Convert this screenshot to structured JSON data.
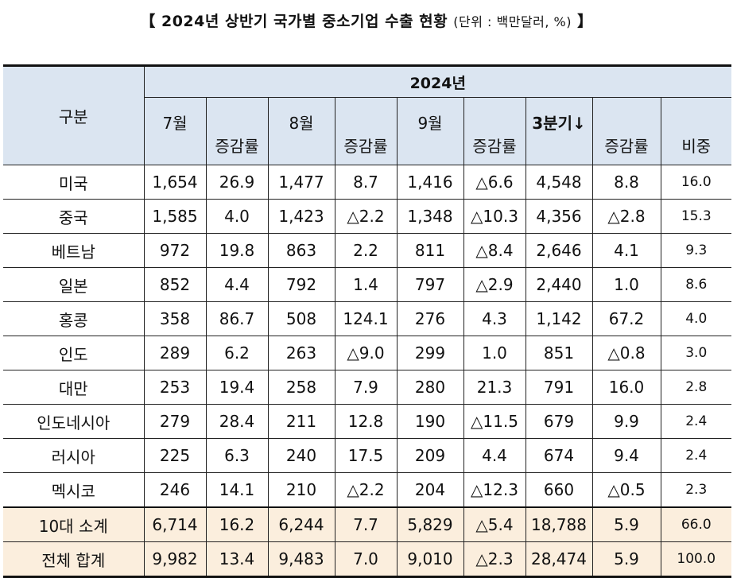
{
  "title": {
    "open": "【",
    "main": "2024년 상반기 국가별 중소기업 수출 현황",
    "unit": "(단위 : 백만달러, %)",
    "close": "】"
  },
  "header": {
    "category": "구분",
    "year": "2024년",
    "jul": "7월",
    "aug": "8월",
    "sep": "9월",
    "q3": "3분기↓",
    "change": "증감률",
    "share": "비중"
  },
  "rows": [
    [
      "미국",
      "1,654",
      "26.9",
      "1,477",
      "8.7",
      "1,416",
      "△6.6",
      "4,548",
      "8.8",
      "16.0"
    ],
    [
      "중국",
      "1,585",
      "4.0",
      "1,423",
      "△2.2",
      "1,348",
      "△10.3",
      "4,356",
      "△2.8",
      "15.3"
    ],
    [
      "베트남",
      "972",
      "19.8",
      "863",
      "2.2",
      "811",
      "△8.4",
      "2,646",
      "4.1",
      "9.3"
    ],
    [
      "일본",
      "852",
      "4.4",
      "792",
      "1.4",
      "797",
      "△2.9",
      "2,440",
      "1.0",
      "8.6"
    ],
    [
      "홍콩",
      "358",
      "86.7",
      "508",
      "124.1",
      "276",
      "4.3",
      "1,142",
      "67.2",
      "4.0"
    ],
    [
      "인도",
      "289",
      "6.2",
      "263",
      "△9.0",
      "299",
      "1.0",
      "851",
      "△0.8",
      "3.0"
    ],
    [
      "대만",
      "253",
      "19.4",
      "258",
      "7.9",
      "280",
      "21.3",
      "791",
      "16.0",
      "2.8"
    ],
    [
      "인도네시아",
      "279",
      "28.4",
      "211",
      "12.8",
      "190",
      "△11.5",
      "679",
      "9.9",
      "2.4"
    ],
    [
      "러시아",
      "225",
      "6.3",
      "240",
      "17.5",
      "209",
      "4.4",
      "674",
      "9.4",
      "2.4"
    ],
    [
      "멕시코",
      "246",
      "14.1",
      "210",
      "△2.2",
      "204",
      "△12.3",
      "660",
      "△0.5",
      "2.3"
    ]
  ],
  "totals": [
    [
      "10대 소계",
      "6,714",
      "16.2",
      "6,244",
      "7.7",
      "5,829",
      "△5.4",
      "18,788",
      "5.9",
      "66.0"
    ],
    [
      "전체 합계",
      "9,982",
      "13.4",
      "9,483",
      "7.0",
      "9,010",
      "△2.3",
      "28,474",
      "5.9",
      "100.0"
    ]
  ]
}
